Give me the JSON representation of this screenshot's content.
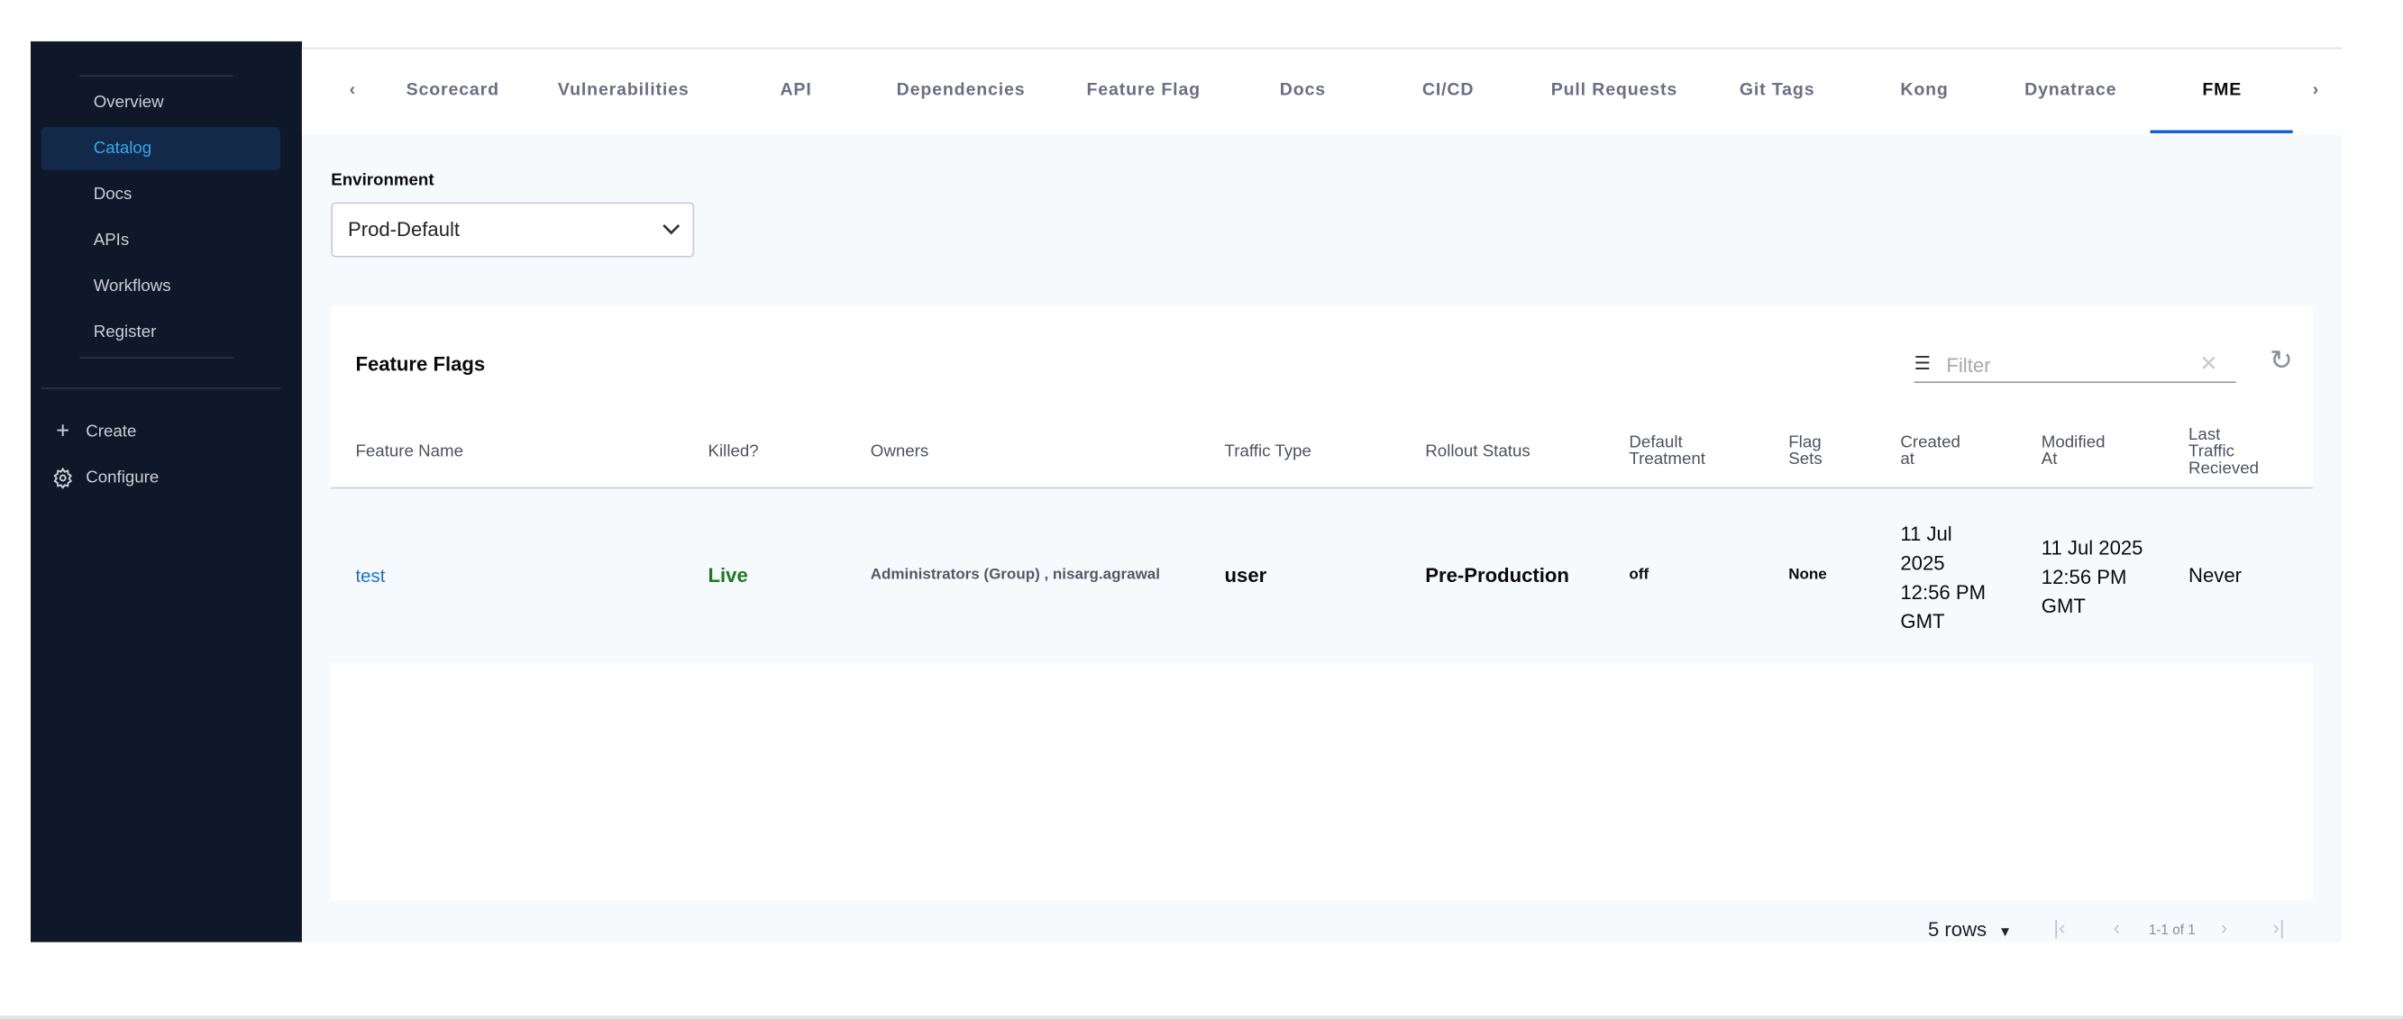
{
  "sidebar": {
    "items": [
      {
        "label": "Overview"
      },
      {
        "label": "Catalog",
        "active": true
      },
      {
        "label": "Docs"
      },
      {
        "label": "APIs"
      },
      {
        "label": "Workflows"
      },
      {
        "label": "Register"
      }
    ],
    "actions": [
      {
        "label": "Create",
        "icon": "plus-icon"
      },
      {
        "label": "Configure",
        "icon": "gear-icon"
      }
    ]
  },
  "tabs": [
    "Scorecard",
    "Vulnerabilities",
    "API",
    "Dependencies",
    "Feature Flag",
    "Docs",
    "CI/CD",
    "Pull Requests",
    "Git Tags",
    "Kong",
    "Dynatrace",
    "FME"
  ],
  "active_tab": "FME",
  "environment": {
    "label": "Environment",
    "value": "Prod-Default"
  },
  "table": {
    "title": "Feature Flags",
    "filter_placeholder": "Filter",
    "columns": [
      "Feature Name",
      "Killed?",
      "Owners",
      "Traffic Type",
      "Rollout Status",
      "Default Treatment",
      "Flag Sets",
      "Created at",
      "Modified At",
      "Last Traffic Recieved"
    ],
    "rows": [
      {
        "name": "test",
        "killed": "Live",
        "owners": "Administrators (Group) , nisarg.agrawal",
        "traffic_type": "user",
        "rollout_status": "Pre-Production",
        "default_treatment": "off",
        "flag_sets": "None",
        "created_at": "11 Jul 2025 12:56 PM GMT",
        "modified_at": "11 Jul 2025 12:56 PM GMT",
        "last_traffic": "Never"
      }
    ]
  },
  "pagination": {
    "rows_per_page": "5 rows",
    "range": "1-1 of 1"
  },
  "colors": {
    "sidebar_bg": "#0f1828",
    "active_blue": "#35a8ee",
    "link": "#1a6fd6",
    "live_green": "#1e7a1e",
    "tab_underline": "#0b5cd5"
  }
}
